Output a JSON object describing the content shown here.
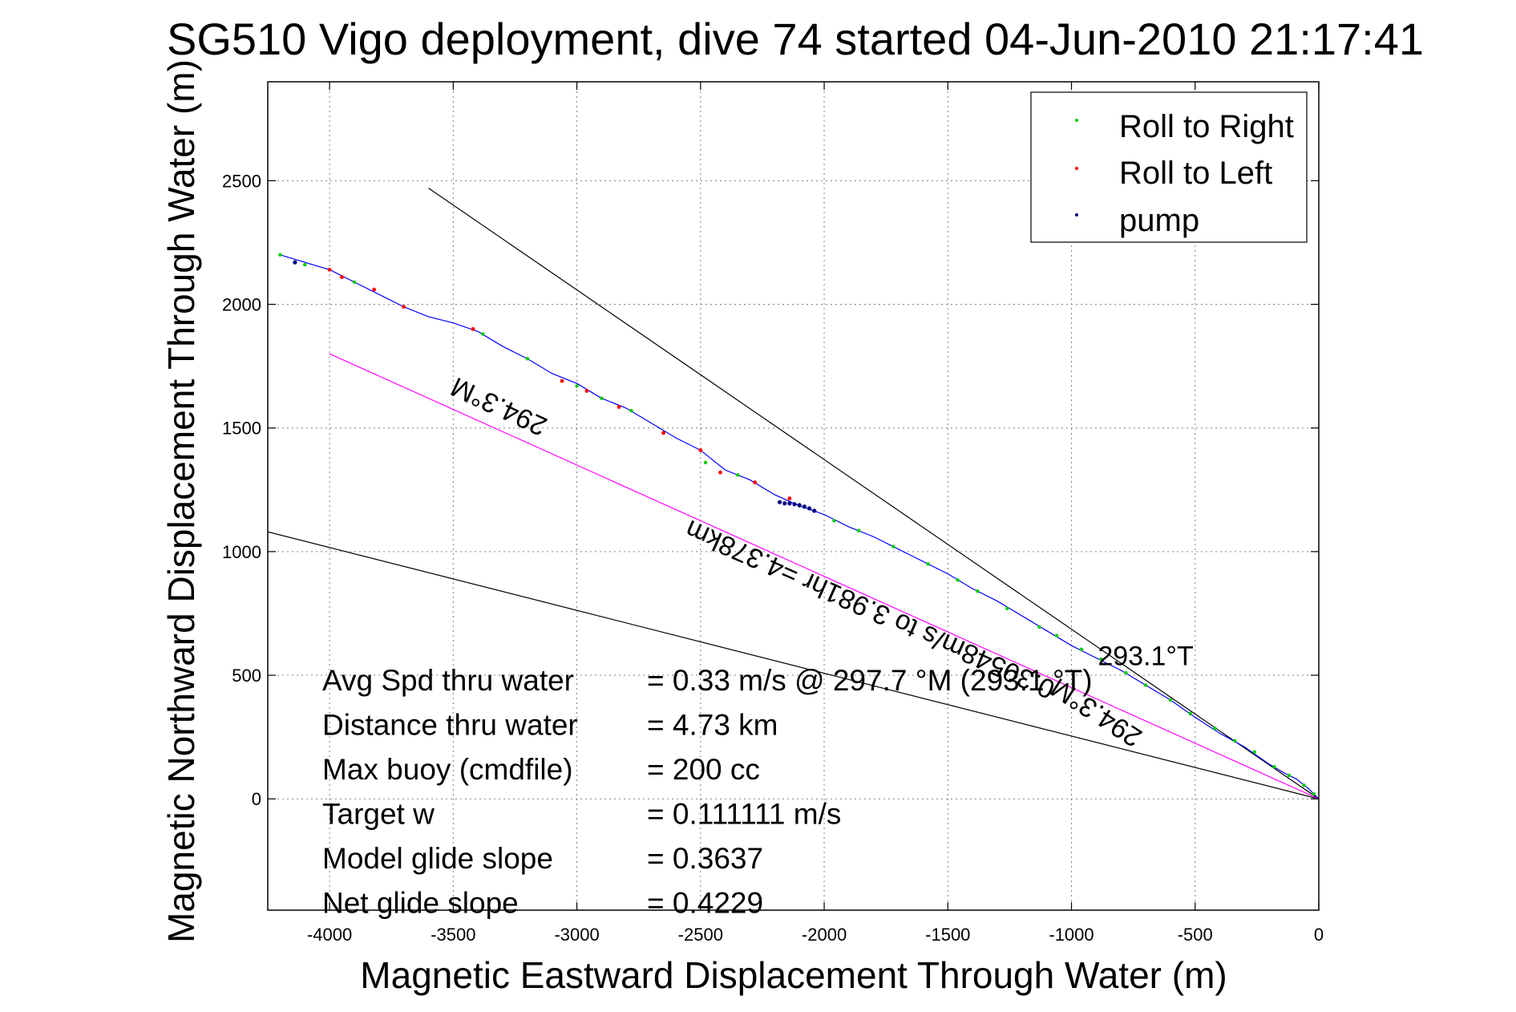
{
  "chart_data": {
    "type": "scatter",
    "title": "SG510 Vigo deployment, dive 74 started 04-Jun-2010 21:17:41",
    "xlabel": "Magnetic Eastward Displacement Through Water (m)",
    "ylabel": "Magnetic Northward Displacement Through Water (m)",
    "xlim": [
      -4250,
      0
    ],
    "ylim": [
      -450,
      2900
    ],
    "xticks": [
      -4000,
      -3500,
      -3000,
      -2500,
      -2000,
      -1500,
      -1000,
      -500,
      0
    ],
    "yticks": [
      0,
      500,
      1000,
      1500,
      2000,
      2500
    ],
    "grid": true,
    "legend_position": "top-right",
    "legend": [
      {
        "label": "Roll to Right",
        "color": "#00cc00"
      },
      {
        "label": "Roll to Left",
        "color": "#ff0000"
      },
      {
        "label": "pump",
        "color": "#000080"
      }
    ],
    "track": {
      "color": "#0000ff",
      "points": [
        [
          0,
          0
        ],
        [
          -40,
          40
        ],
        [
          -90,
          80
        ],
        [
          -140,
          105
        ],
        [
          -200,
          140
        ],
        [
          -300,
          210
        ],
        [
          -400,
          265
        ],
        [
          -500,
          330
        ],
        [
          -600,
          400
        ],
        [
          -700,
          460
        ],
        [
          -800,
          520
        ],
        [
          -900,
          570
        ],
        [
          -1000,
          620
        ],
        [
          -1100,
          680
        ],
        [
          -1200,
          740
        ],
        [
          -1300,
          800
        ],
        [
          -1400,
          850
        ],
        [
          -1500,
          910
        ],
        [
          -1600,
          960
        ],
        [
          -1700,
          1010
        ],
        [
          -1800,
          1060
        ],
        [
          -1900,
          1100
        ],
        [
          -2000,
          1150
        ],
        [
          -2100,
          1185
        ],
        [
          -2200,
          1230
        ],
        [
          -2300,
          1290
        ],
        [
          -2400,
          1330
        ],
        [
          -2500,
          1410
        ],
        [
          -2600,
          1460
        ],
        [
          -2700,
          1520
        ],
        [
          -2800,
          1580
        ],
        [
          -2900,
          1620
        ],
        [
          -3000,
          1680
        ],
        [
          -3100,
          1720
        ],
        [
          -3200,
          1780
        ],
        [
          -3300,
          1830
        ],
        [
          -3400,
          1890
        ],
        [
          -3500,
          1925
        ],
        [
          -3600,
          1950
        ],
        [
          -3700,
          1990
        ],
        [
          -3800,
          2040
        ],
        [
          -3900,
          2090
        ],
        [
          -4000,
          2140
        ],
        [
          -4100,
          2170
        ],
        [
          -4200,
          2200
        ]
      ]
    },
    "roll_right_points": [
      [
        -20,
        20
      ],
      [
        -60,
        55
      ],
      [
        -120,
        95
      ],
      [
        -180,
        130
      ],
      [
        -260,
        190
      ],
      [
        -340,
        235
      ],
      [
        -420,
        285
      ],
      [
        -520,
        345
      ],
      [
        -600,
        400
      ],
      [
        -700,
        460
      ],
      [
        -780,
        510
      ],
      [
        -880,
        565
      ],
      [
        -960,
        605
      ],
      [
        -1060,
        660
      ],
      [
        -1130,
        695
      ],
      [
        -1260,
        770
      ],
      [
        -1380,
        840
      ],
      [
        -1460,
        885
      ],
      [
        -1580,
        950
      ],
      [
        -1720,
        1020
      ],
      [
        -1860,
        1085
      ],
      [
        -1960,
        1125
      ],
      [
        -2100,
        1185
      ],
      [
        -2350,
        1310
      ],
      [
        -2480,
        1360
      ],
      [
        -2650,
        1480
      ],
      [
        -2780,
        1570
      ],
      [
        -2900,
        1620
      ],
      [
        -3000,
        1670
      ],
      [
        -3200,
        1780
      ],
      [
        -3380,
        1880
      ],
      [
        -3700,
        1990
      ],
      [
        -3900,
        2090
      ],
      [
        -4100,
        2160
      ],
      [
        -4200,
        2200
      ]
    ],
    "roll_left_points": [
      [
        -2140,
        1215
      ],
      [
        -2280,
        1280
      ],
      [
        -2420,
        1320
      ],
      [
        -2500,
        1410
      ],
      [
        -2650,
        1480
      ],
      [
        -2830,
        1585
      ],
      [
        -2960,
        1650
      ],
      [
        -3060,
        1690
      ],
      [
        -3420,
        1900
      ],
      [
        -3700,
        1990
      ],
      [
        -3820,
        2060
      ],
      [
        -3950,
        2110
      ],
      [
        -4000,
        2140
      ]
    ],
    "pump_points": [
      [
        -2040,
        1165
      ],
      [
        -2060,
        1175
      ],
      [
        -2080,
        1182
      ],
      [
        -2100,
        1188
      ],
      [
        -2120,
        1192
      ],
      [
        -2140,
        1195
      ],
      [
        -2160,
        1195
      ],
      [
        -2180,
        1200
      ],
      [
        -4140,
        2170
      ]
    ],
    "reference_lines": [
      {
        "color": "#000000",
        "from": [
          0,
          0
        ],
        "to": [
          -3600,
          2470
        ]
      },
      {
        "color": "#000000",
        "from": [
          0,
          0
        ],
        "to": [
          -4250,
          1080
        ]
      },
      {
        "color": "#ff00ff",
        "from": [
          0,
          0
        ],
        "to": [
          -4000,
          1800
        ]
      }
    ],
    "annotations": [
      {
        "text": "294.3°M",
        "at": [
          -3300,
          1620
        ],
        "rotate_deg": 205
      },
      {
        "text": "294.3°M",
        "at": [
          -880,
          380
        ],
        "rotate_deg": 213
      },
      {
        "text": "0.30548m/s to 3.981hr =4.378km",
        "at": [
          -1800,
          800
        ],
        "rotate_deg": 204
      },
      {
        "text": "293.1°T",
        "at": [
          -700,
          540
        ],
        "rotate_deg": 0
      }
    ],
    "stats": [
      {
        "label": "Avg Spd thru water",
        "value": "=  0.33 m/s @ 297.7 °M (293.1 °T)"
      },
      {
        "label": "Distance thru water",
        "value": "=  4.73 km"
      },
      {
        "label": "Max buoy (cmdfile)",
        "value": "= 200 cc"
      },
      {
        "label": "Target w",
        "value": "= 0.111111 m/s"
      },
      {
        "label": "Model glide slope",
        "value": "= 0.3637"
      },
      {
        "label": "Net glide slope",
        "value": "= 0.4229"
      }
    ]
  }
}
